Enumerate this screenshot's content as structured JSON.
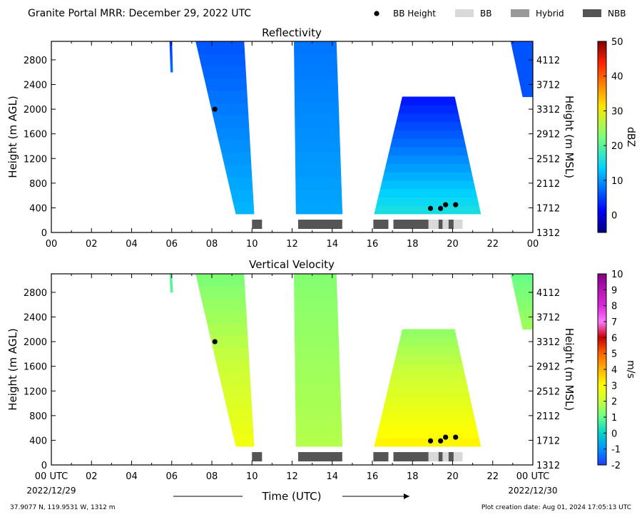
{
  "figure": {
    "title": "Granite Portal MRR:  December 29, 2022 UTC",
    "xlabel": "Time (UTC)",
    "start_tick_label": "00 UTC",
    "start_date": "2022/12/29",
    "end_tick_label": "00 UTC",
    "end_date": "2022/12/30",
    "location": "37.9077 N, 119.9531 W, 1312 m",
    "creation": "Plot creation date: Aug 01, 2024 17:05:13 UTC"
  },
  "legend": {
    "items": [
      {
        "name": "BB Height",
        "kind": "marker",
        "color": "#000000"
      },
      {
        "name": "BB",
        "kind": "patch",
        "color": "#d9d9d9"
      },
      {
        "name": "Hybrid",
        "kind": "patch",
        "color": "#999999"
      },
      {
        "name": "NBB",
        "kind": "patch",
        "color": "#555555"
      }
    ]
  },
  "chart_data": [
    {
      "type": "heatmap",
      "title": "Reflectivity",
      "ylabel": "Height (m AGL)",
      "y2label": "Height (m MSL)",
      "xlim": [
        0,
        24
      ],
      "ylim": [
        0,
        3100
      ],
      "x_ticks": [
        "00",
        "02",
        "04",
        "06",
        "08",
        "10",
        "12",
        "14",
        "16",
        "18",
        "20",
        "22",
        "00"
      ],
      "y_ticks": [
        0,
        400,
        800,
        1200,
        1600,
        2000,
        2400,
        2800
      ],
      "y2_ticks": [
        1312,
        1712,
        2112,
        2512,
        2912,
        3312,
        3712,
        4112
      ],
      "colorbar": {
        "label": "dBZ",
        "min": -5,
        "max": 50,
        "ticks": [
          0,
          10,
          20,
          30,
          40,
          50
        ],
        "colormap": "jet"
      },
      "echo_regions": [
        {
          "name": "isolated-echo-06",
          "top_left": [
            5.9,
            3100
          ],
          "top_right": [
            6.0,
            3100
          ],
          "bottom_left": [
            5.95,
            2600
          ],
          "bottom_right": [
            6.05,
            2600
          ],
          "base_dbz": 8,
          "top_dbz": 4
        },
        {
          "name": "band-07-10",
          "top_left": [
            7.2,
            3100
          ],
          "top_right": [
            9.6,
            3100
          ],
          "bottom_left": [
            9.2,
            300
          ],
          "bottom_right": [
            10.1,
            300
          ],
          "base_dbz": 12,
          "top_dbz": 6
        },
        {
          "name": "band-12-14",
          "top_left": [
            12.1,
            3100
          ],
          "top_right": [
            14.2,
            3100
          ],
          "bottom_left": [
            12.2,
            300
          ],
          "bottom_right": [
            14.5,
            300
          ],
          "base_dbz": 11,
          "top_dbz": 8
        },
        {
          "name": "band-16-21",
          "top_left": [
            17.5,
            2200
          ],
          "top_right": [
            20.1,
            2200
          ],
          "bottom_left": [
            16.1,
            300
          ],
          "bottom_right": [
            21.4,
            300
          ],
          "base_dbz": 16,
          "top_dbz": 2
        },
        {
          "name": "echo-23",
          "top_left": [
            22.9,
            3100
          ],
          "top_right": [
            24.0,
            3100
          ],
          "bottom_left": [
            23.5,
            2200
          ],
          "bottom_right": [
            24.0,
            2400
          ],
          "base_dbz": 6,
          "top_dbz": 6
        }
      ],
      "bb_height": [
        {
          "x": 8.15,
          "y": 2000
        },
        {
          "x": 18.9,
          "y": 390
        },
        {
          "x": 19.4,
          "y": 390
        },
        {
          "x": 19.65,
          "y": 450
        },
        {
          "x": 20.15,
          "y": 450
        }
      ],
      "bb_class": [
        {
          "start": 10.0,
          "end": 10.5,
          "class": "NBB"
        },
        {
          "start": 12.3,
          "end": 14.5,
          "class": "NBB"
        },
        {
          "start": 16.05,
          "end": 16.8,
          "class": "NBB"
        },
        {
          "start": 17.05,
          "end": 18.8,
          "class": "NBB"
        },
        {
          "start": 18.8,
          "end": 19.3,
          "class": "BB"
        },
        {
          "start": 19.3,
          "end": 19.5,
          "class": "NBB"
        },
        {
          "start": 19.5,
          "end": 19.8,
          "class": "BB"
        },
        {
          "start": 19.8,
          "end": 20.05,
          "class": "NBB"
        },
        {
          "start": 20.05,
          "end": 20.5,
          "class": "BB"
        }
      ]
    },
    {
      "type": "heatmap",
      "title": "Vertical Velocity",
      "ylabel": "Height (m AGL)",
      "y2label": "Height (m MSL)",
      "xlim": [
        0,
        24
      ],
      "ylim": [
        0,
        3100
      ],
      "x_ticks": [
        "00 UTC",
        "02",
        "04",
        "06",
        "08",
        "10",
        "12",
        "14",
        "16",
        "18",
        "20",
        "22",
        "00 UTC"
      ],
      "y_ticks": [
        0,
        400,
        800,
        1200,
        1600,
        2000,
        2400,
        2800
      ],
      "y2_ticks": [
        1312,
        1712,
        2112,
        2512,
        2912,
        3312,
        3712,
        4112
      ],
      "colorbar": {
        "label": "m/s",
        "min": -2,
        "max": 10,
        "ticks": [
          -2,
          -1,
          0,
          1,
          2,
          3,
          4,
          5,
          6,
          7,
          8,
          9,
          10
        ],
        "colormap": "velocity"
      },
      "echo_regions": [
        {
          "name": "isolated-echo-06",
          "top_left": [
            5.9,
            3100
          ],
          "top_right": [
            6.0,
            3100
          ],
          "bottom_left": [
            5.95,
            2800
          ],
          "bottom_right": [
            6.05,
            2800
          ],
          "base_ms": 0.8,
          "top_ms": 0.8
        },
        {
          "name": "band-07-10",
          "top_left": [
            7.2,
            3100
          ],
          "top_right": [
            9.6,
            3100
          ],
          "bottom_left": [
            9.2,
            300
          ],
          "bottom_right": [
            10.1,
            300
          ],
          "base_ms": 2.8,
          "top_ms": 1.2
        },
        {
          "name": "band-12-14",
          "top_left": [
            12.1,
            3100
          ],
          "top_right": [
            14.2,
            3100
          ],
          "bottom_left": [
            12.2,
            300
          ],
          "bottom_right": [
            14.5,
            300
          ],
          "base_ms": 1.8,
          "top_ms": 1.3
        },
        {
          "name": "band-16-21",
          "top_left": [
            17.5,
            2200
          ],
          "top_right": [
            20.1,
            2200
          ],
          "bottom_left": [
            16.1,
            300
          ],
          "bottom_right": [
            21.4,
            300
          ],
          "base_ms": 3.2,
          "top_ms": 1.4
        },
        {
          "name": "echo-23",
          "top_left": [
            22.9,
            3100
          ],
          "top_right": [
            24.0,
            3100
          ],
          "bottom_left": [
            23.5,
            2200
          ],
          "bottom_right": [
            24.0,
            2400
          ],
          "base_ms": 1.6,
          "top_ms": 1.0
        }
      ],
      "bb_height": [
        {
          "x": 8.15,
          "y": 2000
        },
        {
          "x": 18.9,
          "y": 390
        },
        {
          "x": 19.4,
          "y": 390
        },
        {
          "x": 19.65,
          "y": 450
        },
        {
          "x": 20.15,
          "y": 450
        }
      ],
      "bb_class": [
        {
          "start": 10.0,
          "end": 10.5,
          "class": "NBB"
        },
        {
          "start": 12.3,
          "end": 14.5,
          "class": "NBB"
        },
        {
          "start": 16.05,
          "end": 16.8,
          "class": "NBB"
        },
        {
          "start": 17.05,
          "end": 18.8,
          "class": "NBB"
        },
        {
          "start": 18.8,
          "end": 19.3,
          "class": "BB"
        },
        {
          "start": 19.3,
          "end": 19.5,
          "class": "NBB"
        },
        {
          "start": 19.5,
          "end": 19.8,
          "class": "BB"
        },
        {
          "start": 19.8,
          "end": 20.05,
          "class": "NBB"
        },
        {
          "start": 20.05,
          "end": 20.5,
          "class": "BB"
        }
      ]
    }
  ]
}
